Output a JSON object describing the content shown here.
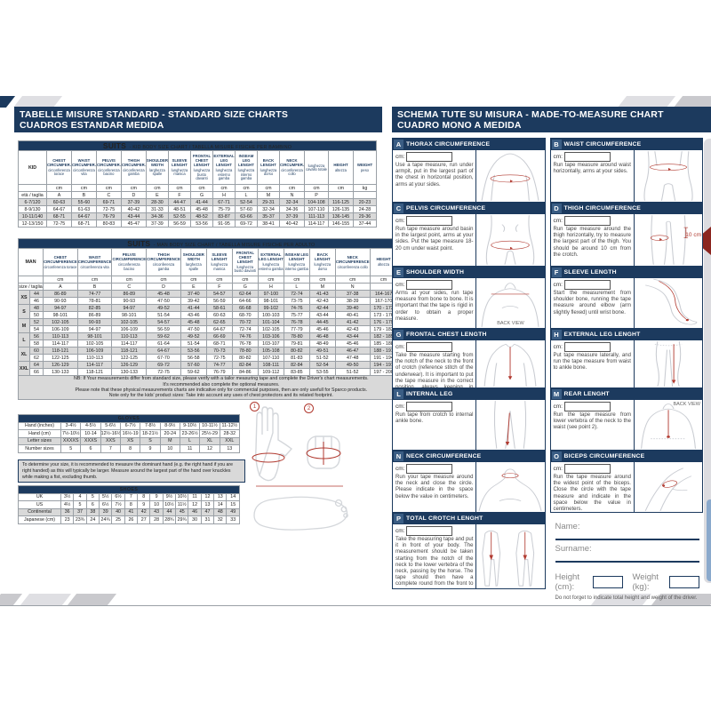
{
  "header": {
    "left1": "TABELLE MISURE STANDARD - STANDARD SIZE CHARTS",
    "left2": "CUADROS ESTANDAR MEDIDA",
    "right1": "SCHEMA TUTE SU MISURA - MADE-TO-MEASURE CHART",
    "right2": "CUADRO MONO A MEDIDA"
  },
  "colors": {
    "navy": "#1c3a5e",
    "red": "#b13a30",
    "row_alt": "#d9d9d9"
  },
  "kid_table": {
    "name": "kid-body-size-chart",
    "title_bold": "SUITS",
    "title_rest": " - KID BODY SIZE CHART  / TABELLA MISURE FISICHE PER BAMBINO",
    "corner": "KID",
    "label_cols": 1,
    "col_headers": [
      {
        "en": "CHEST CIRCUMFER.",
        "it": "circonferenza torace"
      },
      {
        "en": "WAIST CIRCUMFER.",
        "it": "circonferenza vita"
      },
      {
        "en": "PELVIS CIRCUMFER.",
        "it": "circonferenza bacino"
      },
      {
        "en": "THIGH CIRCUMFER.",
        "it": "circonferenza gamba"
      },
      {
        "en": "SHOULDER WIDTH",
        "it": "larghezza spalle"
      },
      {
        "en": "SLEEVE LENGHT",
        "it": "lunghezza manica"
      },
      {
        "en": "FRONTAL CHEST LENGHT",
        "it": "lunghezza busto davanti"
      },
      {
        "en": "EXTERNAL LEG LENGHT",
        "it": "lunghezza esterno gamba"
      },
      {
        "en": "INSEAM LEG LENGHT",
        "it": "lunghezza interno gamba"
      },
      {
        "en": "BACK LENGHT",
        "it": "lunghezza dorso"
      },
      {
        "en": "NECK CIRCUMFER.",
        "it": "circonferenza collo"
      },
      {
        "en": "",
        "it": "lunghezza cavallo totale"
      },
      {
        "en": "HEIGHT",
        "it": "altezza"
      },
      {
        "en": "WEIGHT",
        "it": "peso"
      }
    ],
    "units": [
      "cm",
      "cm",
      "cm",
      "cm",
      "cm",
      "cm",
      "cm",
      "cm",
      "cm",
      "cm",
      "cm",
      "cm",
      "cm",
      "kg"
    ],
    "letters_label": "età / taglia",
    "letters": [
      "A",
      "B",
      "C",
      "D",
      "E",
      "F",
      "G",
      "H",
      "L",
      "M",
      "N",
      "P",
      "",
      ""
    ],
    "rows": [
      {
        "size": "6-7/120",
        "v": [
          "60-63",
          "55-60",
          "69-71",
          "37-39",
          "28-30",
          "44-47",
          "41-44",
          "67-71",
          "52-54",
          "29-31",
          "32-34",
          "104-108",
          "116-125",
          "20-23"
        ]
      },
      {
        "size": "8-9/130",
        "v": [
          "64-67",
          "61-63",
          "72-75",
          "40-42",
          "31-33",
          "48-51",
          "45-48",
          "75-79",
          "57-60",
          "32-34",
          "34-36",
          "107-110",
          "126-135",
          "24-28"
        ]
      },
      {
        "size": "10-11/140",
        "v": [
          "68-71",
          "64-67",
          "76-79",
          "43-44",
          "34-36",
          "52-55",
          "48-52",
          "83-87",
          "63-66",
          "35-37",
          "37-39",
          "111-113",
          "136-145",
          "29-36"
        ]
      },
      {
        "size": "12-13/150",
        "v": [
          "72-75",
          "68-71",
          "80-83",
          "45-47",
          "37-39",
          "56-59",
          "53-56",
          "91-95",
          "69-72",
          "38-41",
          "40-42",
          "114-117",
          "146-155",
          "37-44"
        ]
      }
    ]
  },
  "man_table": {
    "name": "man-body-size-chart",
    "title_bold": "SUITS",
    "title_rest": " - MAN BODY SIZE CHART / TABELLA MISURE FISICHE PER ADULTO",
    "corner": "MAN",
    "label_cols": 2,
    "col_headers": [
      {
        "en": "CHEST CIRCUMFERENCE",
        "it": "circonferenza torace"
      },
      {
        "en": "WAIST CIRCUMFERENCE",
        "it": "circonferenza vita"
      },
      {
        "en": "PELVIS CIRCUMFERENCE",
        "it": "circonferenza bacino"
      },
      {
        "en": "THIGH CIRCUMFERENCE",
        "it": "circonferenza gamba"
      },
      {
        "en": "SHOULDER WIDTH",
        "it": "larghezza spalle"
      },
      {
        "en": "SLEEVE LENGHT",
        "it": "lunghezza manica"
      },
      {
        "en": "FRONTAL CHEST LENGHT",
        "it": "lunghezza busto davanti"
      },
      {
        "en": "EXTERNAL LEG LENGHT",
        "it": "lunghezza esterno gamba"
      },
      {
        "en": "INSEAM LEG LENGHT",
        "it": "lunghezza interno gamba"
      },
      {
        "en": "BACK LENGHT",
        "it": "lunghezza dorso"
      },
      {
        "en": "NECK CIRCUMFERENCE",
        "it": "circonferenza collo"
      },
      {
        "en": "HEIGHT",
        "it": "altezza"
      },
      {
        "en": "WEIGHT",
        "it": "peso"
      }
    ],
    "units": [
      "cm",
      "cm",
      "cm",
      "cm",
      "cm",
      "cm",
      "cm",
      "cm",
      "cm",
      "cm",
      "cm",
      "cm",
      "kg"
    ],
    "letters_label": "size / taglia",
    "letters": [
      "A",
      "B",
      "C",
      "D",
      "E",
      "F",
      "G",
      "H",
      "L",
      "M",
      "N",
      "",
      ""
    ],
    "rows": [
      {
        "group": "XS",
        "size": "44",
        "v": [
          "86-89",
          "74-77",
          "86-89",
          "45-48",
          "37-40",
          "54-57",
          "62-64",
          "97-100",
          "72-74",
          "41-43",
          "37-38",
          "164-167",
          "54"
        ]
      },
      {
        "size": "46",
        "v": [
          "90-93",
          "78-81",
          "90-93",
          "47-50",
          "39-42",
          "56-59",
          "64-66",
          "98-101",
          "73-75",
          "42-43",
          "38-39",
          "167-170",
          "60"
        ]
      },
      {
        "group": "S",
        "size": "48",
        "v": [
          "94-97",
          "82-85",
          "94-97",
          "49-52",
          "41-44",
          "58-61",
          "66-68",
          "99-102",
          "74-76",
          "42-44",
          "39-40",
          "170 - 173",
          "66"
        ]
      },
      {
        "size": "50",
        "v": [
          "98-101",
          "86-89",
          "98-101",
          "51-54",
          "43-46",
          "60-63",
          "68-70",
          "100-103",
          "75-77",
          "43-44",
          "40-41",
          "173 - 176",
          "72"
        ]
      },
      {
        "group": "M",
        "size": "52",
        "v": [
          "102-105",
          "90-93",
          "102-105",
          "54-57",
          "45-48",
          "62-65",
          "70-72",
          "101-104",
          "76-78",
          "44-45",
          "41-42",
          "176 - 179",
          "78"
        ]
      },
      {
        "size": "54",
        "v": [
          "106-109",
          "94-97",
          "106-109",
          "56-59",
          "47-50",
          "64-67",
          "72-74",
          "102-105",
          "77-79",
          "45-46",
          "42-43",
          "179 - 182",
          "84"
        ]
      },
      {
        "group": "L",
        "size": "56",
        "v": [
          "110-113",
          "98-101",
          "110-113",
          "59-62",
          "49-52",
          "66-69",
          "74-76",
          "103-106",
          "78-80",
          "46-48",
          "43-44",
          "182 - 185",
          "90"
        ]
      },
      {
        "size": "58",
        "v": [
          "114-117",
          "102-105",
          "114-117",
          "61-64",
          "51-54",
          "68-71",
          "76-78",
          "103-107",
          "79-81",
          "48-49",
          "45-46",
          "185 - 188",
          "96"
        ]
      },
      {
        "group": "XL",
        "size": "60",
        "v": [
          "118-121",
          "106-109",
          "118-121",
          "64-67",
          "53-56",
          "70-73",
          "78-80",
          "105-108",
          "80-82",
          "49-51",
          "46-47",
          "188 - 191",
          "102"
        ]
      },
      {
        "size": "62",
        "v": [
          "122-125",
          "110-113",
          "122-125",
          "67-70",
          "56-58",
          "72-75",
          "80-82",
          "107-110",
          "81-83",
          "51-52",
          "47-48",
          "191 - 194",
          "108"
        ]
      },
      {
        "group": "XXL",
        "size": "64",
        "v": [
          "126-129",
          "114-117",
          "126-129",
          "69-72",
          "57-60",
          "74-77",
          "82-84",
          "108-111",
          "82-84",
          "52-54",
          "49-50",
          "194 - 197",
          "114"
        ]
      },
      {
        "size": "66",
        "v": [
          "130-133",
          "118-121",
          "130-133",
          "72-75",
          "59-62",
          "76-79",
          "84-86",
          "109-112",
          "83-85",
          "53-55",
          "51-52",
          "197 - 200",
          "120"
        ]
      }
    ],
    "note_lines": [
      "NB: If Your measurements differ from standard size, please verify with a tailor measuring tape and complete the Driver's chart measurements.",
      "It's recommended also complete the optional measures.",
      "Please note that these physical measurements charts are indicative only for commercial purposes, then are only usefull for Sparco products.",
      "Note only for the kids' product sizes: Take into account any uses of chest protectors and its related footprint."
    ]
  },
  "gloves": {
    "title": "GLOVES",
    "rows": [
      {
        "label": "Hand (inches)",
        "v": [
          "3-4½",
          "4-5½",
          "5-6½",
          "6-7½",
          "7-8½",
          "8-9½",
          "9-10½",
          "10-11½",
          "11-12½"
        ]
      },
      {
        "label": "Hand (cm)",
        "v": [
          "7½-10½",
          "10-14",
          "12½-16½",
          "16½-19",
          "18-21½",
          "20-24",
          "23-26½",
          "25½-29",
          "28-32"
        ]
      },
      {
        "label": "Letter sizes",
        "v": [
          "XXXXS",
          "XXXS",
          "XXS",
          "XS",
          "S",
          "M",
          "L",
          "XL",
          "XXL"
        ]
      },
      {
        "label": "Number sizes",
        "v": [
          "5",
          "6",
          "7",
          "8",
          "9",
          "10",
          "11",
          "12",
          "13"
        ]
      }
    ],
    "gray_row": 2,
    "note": "To determine your size, it is recommended to measure the dominant hand (e.g. the right hand if you are right handed) as this will typically be larger. Measure around the largest part of the hand over knuckles while making a fist, excluding thumb.",
    "marker1": "1",
    "marker2": "2"
  },
  "shoes": {
    "title": "SHOES",
    "rows": [
      {
        "label": "UK",
        "v": [
          "3½",
          "4",
          "5",
          "5½",
          "6½",
          "7",
          "8",
          "9",
          "9½",
          "10½",
          "11",
          "12",
          "13",
          "14"
        ]
      },
      {
        "label": "US",
        "v": [
          "4½",
          "5",
          "6",
          "6½",
          "7½",
          "8",
          "9",
          "10",
          "10½",
          "11½",
          "12",
          "13",
          "14",
          "15"
        ]
      },
      {
        "label": "Continental",
        "v": [
          "36",
          "37",
          "38",
          "39",
          "40",
          "41",
          "42",
          "43",
          "44",
          "45",
          "46",
          "47",
          "48",
          "49"
        ]
      },
      {
        "label": "Japanese (cm)",
        "v": [
          "23",
          "23¾",
          "24",
          "24¾",
          "25",
          "26",
          "27",
          "28",
          "28¾",
          "29¾",
          "30",
          "31",
          "32",
          "33"
        ]
      }
    ],
    "gray_row": 2
  },
  "mtm": {
    "cm_label": "cm:",
    "sections": {
      "thorax": {
        "letter": "A",
        "title": "THORAX CIRCUMFERENCE",
        "text": "Use a tape measure, run under armpit, put in the largest part of the chest in horizontal position, arms at your sides."
      },
      "waist": {
        "letter": "B",
        "title": "WAIST CIRCUMFERENCE",
        "text": "Run tape measure around waist horizontally, arms at your sides."
      },
      "pelvis": {
        "letter": "C",
        "title": "PELVIS CIRCUMFERENCE",
        "text": "Run tape measure around basin in the largest point, arms at your sides. Put the tape measure 18-20 cm under waist point."
      },
      "thigh": {
        "letter": "D",
        "title": "THIGH CIRCUMFERENCE",
        "text": "Run tape measure around the thigh horizontally, try to measure the largest part of the thigh. You should be around 10 cm from the crotch.",
        "callout": "10 cm"
      },
      "shoulder": {
        "letter": "E",
        "title": "SHOULDER WIDTH",
        "text": "Arms at your sides, run tape measure from bone to bone. It is important that the tape is rigid in order to obtain a proper measure.",
        "view_label": "BACK VIEW"
      },
      "sleeve": {
        "letter": "F",
        "title": "SLEEVE LENGTH",
        "text": "Start the measurement from shoulder bone, running the tape measure around elbow (arm slightly flexed) until wrist bone."
      },
      "frontal": {
        "letter": "G",
        "title": "FRONTAL CHEST LENGTH",
        "text": "Take the measure starting from the notch of the neck to the front of crotch (reference stitch of the underwear). It is important to put the tape measure in the correct position, always keeping in tension in a vertical position."
      },
      "external": {
        "letter": "H",
        "title": "EXTERNAL LEG LENGHT",
        "text": "Put tape measure laterally, and run the tape measure from waist to ankle bone."
      },
      "internal": {
        "letter": "L",
        "title": "INTERNAL LEG",
        "text": "Run tape from crotch to internal ankle bone."
      },
      "rear": {
        "letter": "M",
        "title": "REAR LENGHT",
        "text": "Run the tape measure from lower vertebra of the neck to the waist (see point 2).",
        "view_label": "BACK VIEW"
      },
      "neck": {
        "letter": "N",
        "title": "NECK CIRCUMFERENCE",
        "text": "Run your tape measure around the neck and close the circle. Please indicate in the space below the value in centimeters."
      },
      "biceps": {
        "letter": "O",
        "title": "BICEPS CIRCUMFERENCE",
        "text": "Run the tape measure around the widest point of the biceps. Close the circle with the tape measure and indicate in the space below the value in centimeters."
      },
      "crotch": {
        "letter": "P",
        "title": "TOTAL CROTCH LENGHT",
        "text": "Take the measuring tape and put it in front of your body. The measurement should be taken starting from the notch of the neck to the lower vertebra of the neck, passing by the horse. The tape should then have a complete round from the front to the back."
      }
    },
    "form": {
      "name_label": "Name:",
      "surname_label": "Surname:",
      "height_label": "Height (cm):",
      "weight_label": "Weight (kg):",
      "note": "Do not forget to indicate total height and weight of the driver."
    }
  }
}
